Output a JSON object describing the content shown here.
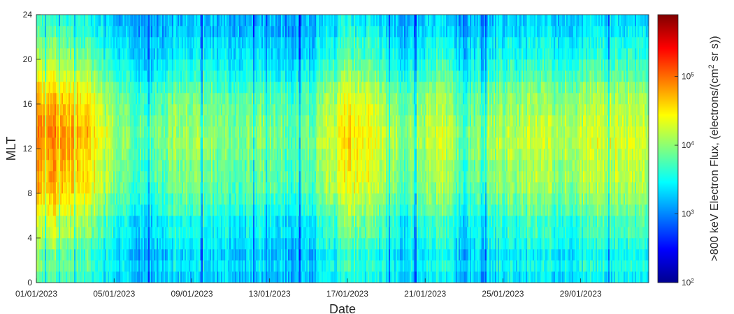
{
  "chart_data": {
    "type": "heatmap",
    "title": "",
    "xlabel": "Date",
    "ylabel": "MLT",
    "x_tick_labels": [
      "01/01/2023",
      "05/01/2023",
      "09/01/2023",
      "13/01/2023",
      "17/01/2023",
      "21/01/2023",
      "25/01/2023",
      "29/01/2023"
    ],
    "x_tick_days": [
      0,
      4,
      8,
      12,
      16,
      20,
      24,
      28
    ],
    "xlim_days": [
      0,
      31.5
    ],
    "y_ticks": [
      0,
      4,
      8,
      12,
      16,
      20,
      24
    ],
    "ylim": [
      0,
      24
    ],
    "colorbar": {
      "label_prefix": ">800 keV Electron Flux, (electrons/(cm",
      "label_sup": "2",
      "label_suffix": " sr s))",
      "scale": "log",
      "range_log10": [
        2,
        5.9
      ],
      "ticks": [
        {
          "base": "10",
          "exp": "2",
          "log": 2
        },
        {
          "base": "10",
          "exp": "3",
          "log": 3
        },
        {
          "base": "10",
          "exp": "4",
          "log": 4
        },
        {
          "base": "10",
          "exp": "5",
          "log": 5
        }
      ],
      "colormap": "jet"
    },
    "mlt_bins": 24,
    "mlt_profile_log10": [
      3.3,
      3.4,
      3.3,
      3.4,
      3.5,
      3.5,
      3.65,
      3.75,
      3.85,
      3.9,
      3.9,
      3.95,
      4.0,
      4.0,
      3.95,
      3.9,
      3.85,
      3.75,
      3.6,
      3.5,
      3.4,
      3.35,
      3.25,
      3.2
    ],
    "daily_activity_log10": [
      0.85,
      0.85,
      0.75,
      0.55,
      0.05,
      -0.2,
      -0.2,
      0.05,
      0.1,
      0.0,
      -0.1,
      -0.05,
      -0.05,
      -0.2,
      -0.1,
      0.2,
      0.5,
      0.45,
      0.15,
      -0.05,
      0.15,
      0.25,
      -0.2,
      0.05,
      0.1,
      0.2,
      0.25,
      0.1,
      0.2,
      0.3,
      0.3,
      0.25
    ],
    "daily_activity_note": "approximate mean log10 flux offset per day relative to the MLT profile"
  }
}
